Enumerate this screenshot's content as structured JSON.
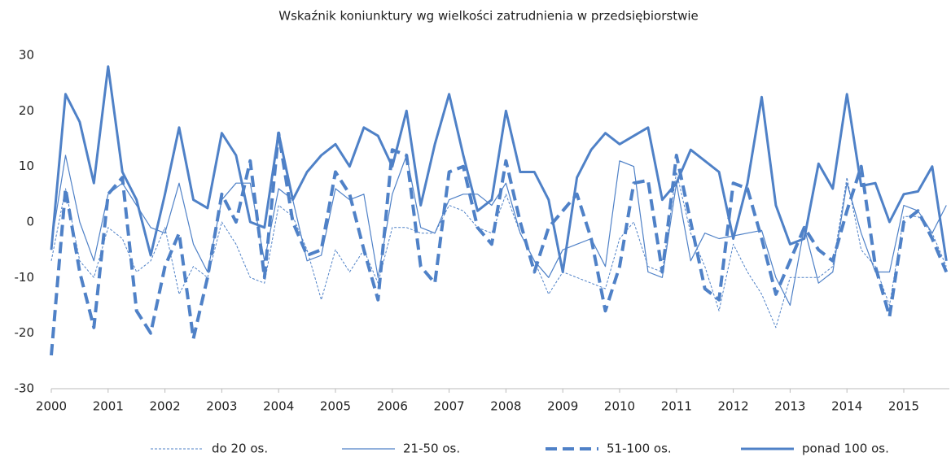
{
  "chart_data": {
    "type": "line",
    "title": "Wskaźnik koniunktury wg wielkości zatrudnienia w przedsiębiorstwie",
    "categories": [
      "2000",
      null,
      null,
      null,
      "2001",
      null,
      null,
      null,
      "2002",
      null,
      null,
      null,
      "2003",
      null,
      null,
      null,
      "2004",
      null,
      null,
      null,
      "2005",
      null,
      null,
      null,
      "2006",
      null,
      null,
      null,
      "2007",
      null,
      null,
      null,
      "2008",
      null,
      null,
      null,
      "2009",
      null,
      null,
      null,
      "2010",
      null,
      null,
      null,
      "2011",
      null,
      null,
      null,
      "2012",
      null,
      null,
      null,
      "2013",
      null,
      null,
      null,
      "2014",
      null,
      null,
      null,
      "2015",
      null,
      null,
      null
    ],
    "series": [
      {
        "name": "do 20 os.",
        "color": "#4f81c7",
        "width": 1,
        "dash": "dotted",
        "values": [
          -7,
          6,
          -7,
          -10,
          -1,
          -3,
          -9,
          -7,
          -1,
          -13,
          -8,
          -10,
          0,
          -4,
          -10,
          -11,
          3,
          1,
          -5,
          -14,
          -5,
          -9,
          -5,
          -11,
          -1,
          -1,
          -2,
          -2,
          3,
          2,
          -1,
          -2,
          5,
          -2,
          -7,
          -13,
          -9,
          -10,
          -11,
          -12,
          -3,
          0,
          -8,
          -9,
          9,
          -2,
          -8,
          -16,
          -4,
          -9,
          -13,
          -19,
          -10,
          -10,
          -10,
          -8,
          8,
          -5,
          -8,
          -15,
          1,
          1,
          -2,
          -8
        ]
      },
      {
        "name": "21-50 os.",
        "color": "#4f81c7",
        "width": 1.2,
        "dash": "solid",
        "values": [
          -4,
          12,
          0,
          -7,
          5,
          7,
          3,
          -1,
          -2,
          7,
          -4,
          -9,
          4,
          7,
          7,
          -7,
          6,
          4,
          -7,
          -6,
          6,
          4,
          5,
          -10,
          5,
          12,
          -1,
          -2,
          4,
          5,
          5,
          3,
          7,
          -2,
          -7,
          -10,
          -5,
          -4,
          -3,
          -8,
          11,
          10,
          -9,
          -10,
          7,
          -7,
          -2,
          -3,
          -2.5,
          -2,
          -1.5,
          -10,
          -15,
          -1,
          -11,
          -9,
          7,
          -2,
          -9,
          -9,
          3,
          2,
          -2,
          3
        ]
      },
      {
        "name": "51-100 os.",
        "color": "#4f81c7",
        "width": 4,
        "dash": "dashed",
        "values": [
          -24,
          6,
          -9,
          -19,
          5,
          8,
          -16,
          -20,
          -8,
          -2,
          -21,
          -10,
          5,
          0,
          11,
          -10,
          16,
          0,
          -6,
          -5,
          9,
          5,
          -5,
          -14,
          13,
          12,
          -8,
          -11,
          9,
          10,
          -1,
          -4,
          11,
          0,
          -9,
          -1,
          2,
          5,
          -3,
          -16,
          -8,
          7,
          7.5,
          -9,
          12,
          0,
          -12,
          -14,
          7,
          6,
          -3,
          -13,
          -7,
          -1,
          -5,
          -7,
          2,
          10,
          -8,
          -17,
          0,
          2,
          -3,
          -9
        ]
      },
      {
        "name": "ponad 100 os.",
        "color": "#4f81c7",
        "width": 3,
        "dash": "solid",
        "values": [
          -5,
          23,
          18,
          7,
          28,
          9,
          4,
          -6,
          5,
          17,
          4,
          2.5,
          16,
          12,
          0,
          -1,
          16,
          4,
          9,
          12,
          14,
          10,
          17,
          15.5,
          10,
          20,
          3,
          14,
          23,
          12,
          2,
          4,
          20,
          9,
          9,
          4,
          -9,
          8,
          13,
          16,
          14,
          15.5,
          17,
          4,
          7,
          13,
          11,
          9,
          -3,
          7,
          22.5,
          3,
          -4,
          -3,
          10.5,
          6,
          23,
          6.5,
          7,
          0,
          5,
          5.5,
          10,
          -7
        ]
      }
    ],
    "ylim": [
      -30,
      30
    ],
    "yticks": [
      -30,
      -20,
      -10,
      0,
      10,
      20,
      30
    ],
    "grid": false,
    "legend": "bottom"
  }
}
